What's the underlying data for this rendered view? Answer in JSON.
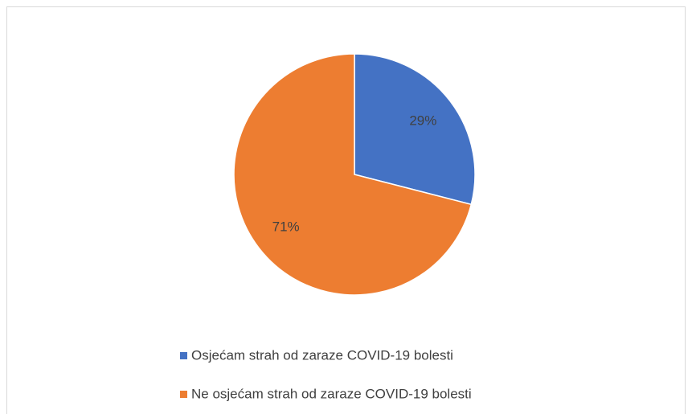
{
  "chart_data": {
    "type": "pie",
    "categories": [
      "Osjećam strah od zaraze COVID-19 bolesti",
      "Ne osjećam strah od zaraze COVID-19 bolesti"
    ],
    "values": [
      29,
      71
    ],
    "value_labels": [
      "29%",
      "71%"
    ],
    "colors": [
      "#4472c4",
      "#ed7d31"
    ],
    "legend": "bottom"
  }
}
